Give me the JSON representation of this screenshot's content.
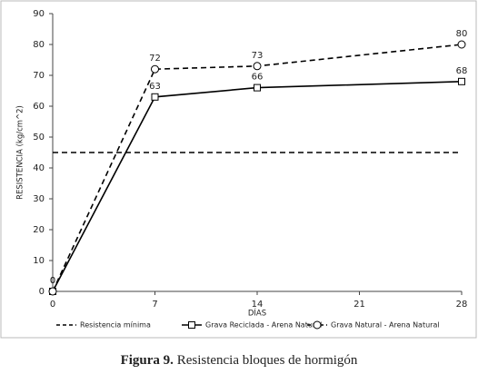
{
  "chart_data": {
    "type": "line",
    "x_label": "DÍAS",
    "y_label": "RESISTENCIA (kg/cm^2)",
    "x": [
      0,
      7,
      14,
      28
    ],
    "series": [
      {
        "name": "Resistencia mínima",
        "color": "#000000",
        "line_style": "dashed",
        "marker": "none",
        "values": [
          45,
          45,
          45,
          45
        ]
      },
      {
        "name": "Grava Reciclada - Arena Natural",
        "color": "#000000",
        "line_style": "solid",
        "marker": "square",
        "values": [
          0,
          63,
          66,
          68
        ]
      },
      {
        "name": "Grava Natural - Arena Natural",
        "color": "#000000",
        "line_style": "dashed",
        "marker": "circle",
        "values": [
          0,
          72,
          73,
          80
        ]
      }
    ],
    "xlim": [
      0,
      28
    ],
    "xticks": [
      0,
      7,
      14,
      21,
      28
    ],
    "ylim": [
      0,
      90
    ],
    "yticks": [
      0,
      10,
      20,
      30,
      40,
      50,
      60,
      70,
      80,
      90
    ],
    "legend": "bottom"
  },
  "caption": {
    "label": "Figura 9.",
    "text": "Resistencia bloques de hormigón"
  }
}
